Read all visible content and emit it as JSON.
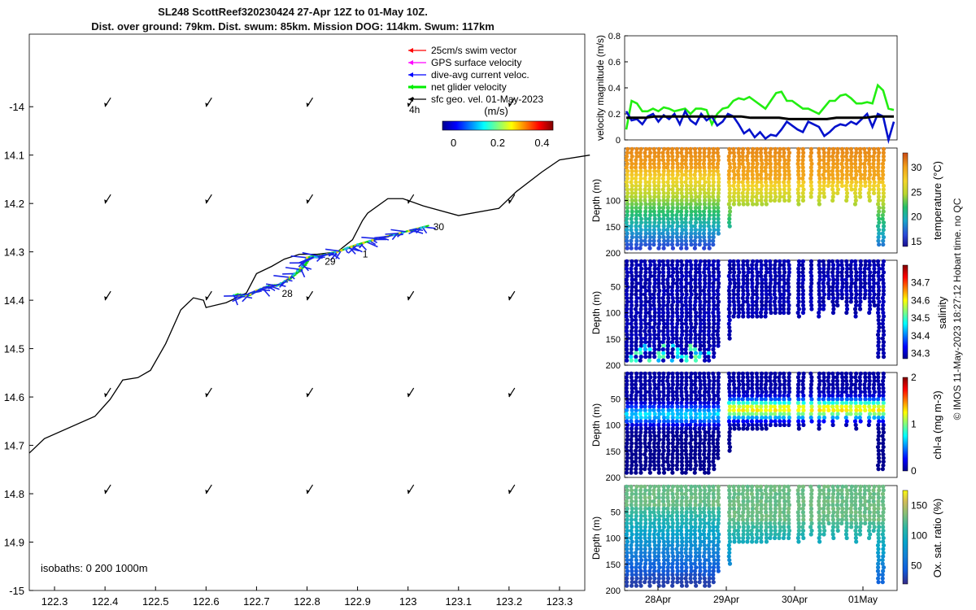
{
  "header": {
    "title_line1": "SL248 ScottReef320230424 27-Apr 12Z to 01-May 10Z.",
    "title_line2": "Dist. over ground: 79km. Dist. swum: 85km. Mission DOG: 114km. Swum: 117km"
  },
  "copyright": "© IMOS 11-May-2023 18:27:12 Hobart time. no QC",
  "colors": {
    "swim": "#ff0000",
    "gps": "#ff00ff",
    "dive": "#0000ff",
    "net": "#00ee00",
    "sfc": "#000000",
    "mag_green": "#22ee11",
    "mag_blue": "#0010cc",
    "mag_black": "#000000"
  },
  "chart_data": [
    {
      "type": "scatter",
      "name": "glider track map",
      "xlim": [
        122.25,
        123.35
      ],
      "ylim": [
        -15.0,
        -13.85
      ],
      "xticks": [
        "122.3",
        "122.4",
        "122.5",
        "122.6",
        "122.7",
        "122.8",
        "122.9",
        "123",
        "123.1",
        "123.2",
        "123.3"
      ],
      "xtick_values": [
        122.3,
        122.4,
        122.5,
        122.6,
        122.7,
        122.8,
        122.9,
        123.0,
        123.1,
        123.2,
        123.3
      ],
      "yticks": [
        "-14",
        "14.1",
        "14.2",
        "14.3",
        "14.4",
        "14.5",
        "14.6",
        "14.7",
        "14.8",
        "14.9",
        "-15"
      ],
      "ytick_values": [
        -14.0,
        -14.1,
        -14.2,
        -14.3,
        -14.4,
        -14.5,
        -14.6,
        -14.7,
        -14.8,
        -14.9,
        -15.0
      ],
      "legend": [
        {
          "label": "25cm/s swim vector",
          "color": "#ff0000"
        },
        {
          "label": "GPS surface velocity",
          "color": "#ff00ff"
        },
        {
          "label": "dive-avg current veloc.",
          "color": "#0000ff"
        },
        {
          "label": "net glider velocity",
          "color": "#00ee00"
        },
        {
          "label": "sfc geo. vel. 01-May-2023",
          "color": "#000000"
        }
      ],
      "legend_extra": "4h",
      "colorbar": {
        "unit": "(m/s)",
        "ticks": [
          "0",
          "0.2",
          "0.4"
        ],
        "tick_values": [
          0,
          0.2,
          0.4
        ],
        "range": [
          -0.05,
          0.45
        ]
      },
      "isobath_label": "isobaths: 0   200  1000m",
      "day_labels": [
        {
          "text": "28",
          "lon": 122.75,
          "lat": -14.385
        },
        {
          "text": "29",
          "lon": 122.835,
          "lat": -14.318
        },
        {
          "text": "1",
          "lon": 122.91,
          "lat": -14.303
        },
        {
          "text": "30",
          "lon": 123.05,
          "lat": -14.247
        }
      ],
      "isobath_200m": [
        [
          122.25,
          -14.716
        ],
        [
          122.28,
          -14.686
        ],
        [
          122.38,
          -14.64
        ],
        [
          122.41,
          -14.605
        ],
        [
          122.435,
          -14.565
        ],
        [
          122.465,
          -14.56
        ],
        [
          122.49,
          -14.545
        ],
        [
          122.52,
          -14.49
        ],
        [
          122.55,
          -14.42
        ],
        [
          122.575,
          -14.395
        ],
        [
          122.595,
          -14.4
        ],
        [
          122.6,
          -14.415
        ],
        [
          122.64,
          -14.405
        ],
        [
          122.68,
          -14.385
        ],
        [
          122.7,
          -14.345
        ],
        [
          122.73,
          -14.33
        ],
        [
          122.755,
          -14.315
        ],
        [
          122.785,
          -14.305
        ],
        [
          122.82,
          -14.305
        ],
        [
          122.86,
          -14.3
        ],
        [
          122.89,
          -14.275
        ],
        [
          122.91,
          -14.235
        ],
        [
          122.92,
          -14.22
        ],
        [
          122.96,
          -14.19
        ],
        [
          122.99,
          -14.19
        ],
        [
          123.03,
          -14.205
        ],
        [
          123.1,
          -14.225
        ],
        [
          123.18,
          -14.21
        ],
        [
          123.215,
          -14.175
        ],
        [
          123.265,
          -14.135
        ],
        [
          123.3,
          -14.11
        ],
        [
          123.36,
          -14.1
        ]
      ],
      "track": [
        [
          122.655,
          -14.39
        ],
        [
          122.68,
          -14.392
        ],
        [
          122.7,
          -14.38
        ],
        [
          122.72,
          -14.372
        ],
        [
          122.74,
          -14.37
        ],
        [
          122.76,
          -14.358
        ],
        [
          122.775,
          -14.345
        ],
        [
          122.79,
          -14.33
        ],
        [
          122.8,
          -14.312
        ],
        [
          122.82,
          -14.31
        ],
        [
          122.84,
          -14.305
        ],
        [
          122.86,
          -14.3
        ],
        [
          122.88,
          -14.292
        ],
        [
          122.9,
          -14.285
        ],
        [
          122.93,
          -14.276
        ],
        [
          122.96,
          -14.268
        ],
        [
          122.99,
          -14.26
        ],
        [
          123.02,
          -14.252
        ],
        [
          123.035,
          -14.248
        ]
      ],
      "current_grid_lon": [
        122.4,
        122.6,
        122.8,
        123.0,
        123.2
      ],
      "current_grid_lat": [
        -14.0,
        -14.2,
        -14.4,
        -14.6,
        -14.8
      ]
    },
    {
      "type": "line",
      "name": "velocity magnitude",
      "ylabel": "velocity magnitude (m/s)",
      "ylim": [
        0,
        0.8
      ],
      "yticks": [
        "0",
        "0.2",
        "0.4",
        "0.6",
        "0.8"
      ],
      "tick_values": [
        0,
        0.2,
        0.4,
        0.6,
        0.8
      ],
      "series": [
        {
          "name": "net glider velocity",
          "color": "#22ee11",
          "values": [
            0.08,
            0.3,
            0.28,
            0.22,
            0.22,
            0.24,
            0.22,
            0.25,
            0.24,
            0.22,
            0.23,
            0.24,
            0.2,
            0.24,
            0.24,
            0.23,
            0.12,
            0.2,
            0.24,
            0.25,
            0.3,
            0.32,
            0.31,
            0.33,
            0.3,
            0.27,
            0.24,
            0.3,
            0.36,
            0.37,
            0.3,
            0.3,
            0.27,
            0.24,
            0.24,
            0.22,
            0.2,
            0.25,
            0.3,
            0.3,
            0.34,
            0.35,
            0.32,
            0.28,
            0.28,
            0.29,
            0.28,
            0.42,
            0.38,
            0.24,
            0.23
          ]
        },
        {
          "name": "dive-avg current",
          "color": "#0010cc",
          "values": [
            0.22,
            0.15,
            0.16,
            0.12,
            0.18,
            0.2,
            0.14,
            0.19,
            0.16,
            0.2,
            0.12,
            0.22,
            0.15,
            0.12,
            0.2,
            0.15,
            0.18,
            0.11,
            0.14,
            0.2,
            0.18,
            0.12,
            0.05,
            0.08,
            0.02,
            0.06,
            0.01,
            0.04,
            0.03,
            0.08,
            0.14,
            0.11,
            0.08,
            0.06,
            0.14,
            0.12,
            0.1,
            0.03,
            0.06,
            0.1,
            0.12,
            0.11,
            0.14,
            0.12,
            0.16,
            0.2,
            0.1,
            0.2,
            0.18,
            0.0,
            0.14
          ]
        },
        {
          "name": "sfc geo. vel.",
          "color": "#000000",
          "values": [
            0.17,
            0.17,
            0.17,
            0.18,
            0.18,
            0.18,
            0.18,
            0.18,
            0.18,
            0.18,
            0.18,
            0.18,
            0.18,
            0.17,
            0.17,
            0.17,
            0.17,
            0.16,
            0.16,
            0.16,
            0.16,
            0.16,
            0.17,
            0.17,
            0.17,
            0.17,
            0.18,
            0.18,
            0.18
          ]
        }
      ]
    },
    {
      "type": "heatmap",
      "name": "temperature section",
      "ylabel": "Depth (m)",
      "clabel": "temperature (°C)",
      "ylim": [
        200,
        0
      ],
      "yticks": [
        "100",
        "150",
        "200"
      ],
      "ytick_values": [
        100,
        150,
        200
      ],
      "cbar_ticks": [
        "30",
        "25",
        "20",
        "15"
      ],
      "cbar_values": [
        30,
        25,
        20,
        15
      ],
      "crange": [
        14,
        33
      ],
      "profile_stat": {
        "surface": 31,
        "bottom": 15,
        "mld": 60,
        "grad": 110
      }
    },
    {
      "type": "heatmap",
      "name": "salinity section",
      "ylabel": "Depth (m)",
      "clabel": "salinity",
      "ylim": [
        200,
        0
      ],
      "yticks": [
        "50",
        "100",
        "150",
        "200"
      ],
      "ytick_values": [
        50,
        100,
        150,
        200
      ],
      "cbar_ticks": [
        "34.7",
        "34.6",
        "34.5",
        "34.4",
        "34.3"
      ],
      "cbar_values": [
        34.7,
        34.6,
        34.5,
        34.4,
        34.3
      ],
      "crange": [
        34.27,
        34.8
      ]
    },
    {
      "type": "heatmap",
      "name": "chlorophyll section",
      "ylabel": "Depth (m)",
      "clabel": "chl-a (mg m-3)",
      "ylim": [
        200,
        0
      ],
      "yticks": [
        "50",
        "100",
        "150",
        "200"
      ],
      "ytick_values": [
        50,
        100,
        150,
        200
      ],
      "cbar_ticks": [
        "2",
        "1",
        "0"
      ],
      "cbar_values": [
        2,
        1,
        0
      ],
      "crange": [
        0,
        2
      ]
    },
    {
      "type": "heatmap",
      "name": "oxygen section",
      "ylabel": "Depth (m)",
      "clabel": "Ox. sat. ratio (%)",
      "ylim": [
        200,
        0
      ],
      "yticks": [
        "50",
        "100",
        "150",
        "200"
      ],
      "ytick_values": [
        50,
        100,
        150,
        200
      ],
      "cbar_ticks": [
        "150",
        "100",
        "50"
      ],
      "cbar_values": [
        150,
        100,
        50
      ],
      "crange": [
        20,
        175
      ],
      "xticks": [
        "28Apr",
        "29Apr",
        "30Apr",
        "01May"
      ]
    }
  ]
}
